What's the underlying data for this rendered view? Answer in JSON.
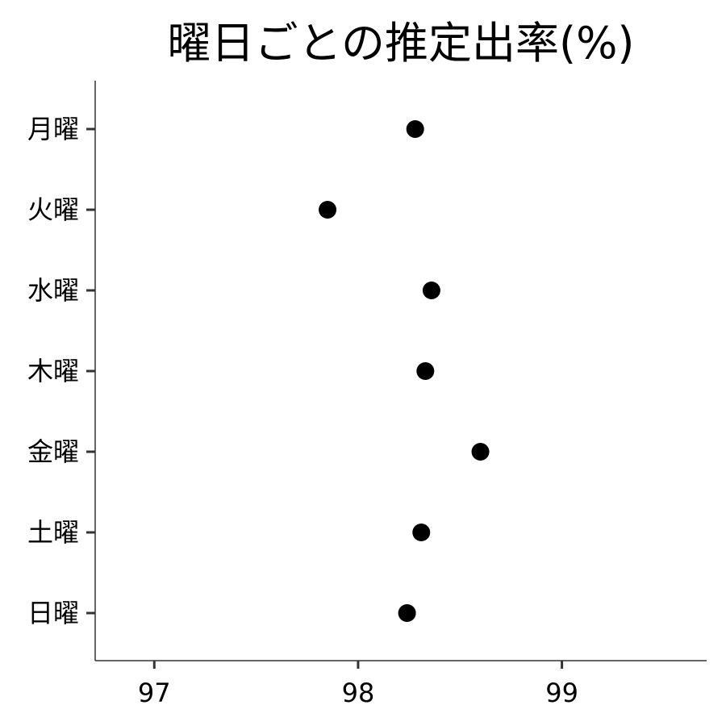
{
  "chart_data": {
    "type": "scatter",
    "title": "曜日ごとの推定出率(%)",
    "xlabel": "",
    "ylabel": "",
    "xlim": [
      96.71,
      99.71
    ],
    "xticks": [
      "97",
      "98",
      "99"
    ],
    "xtick_values": [
      97,
      98,
      99
    ],
    "categories": [
      "月曜",
      "火曜",
      "水曜",
      "木曜",
      "金曜",
      "土曜",
      "日曜"
    ],
    "values": [
      98.28,
      97.85,
      98.36,
      98.33,
      98.6,
      98.31,
      98.24
    ],
    "grid": false,
    "legend": "none",
    "point_color": "#000000",
    "axis_color": "#333333"
  }
}
